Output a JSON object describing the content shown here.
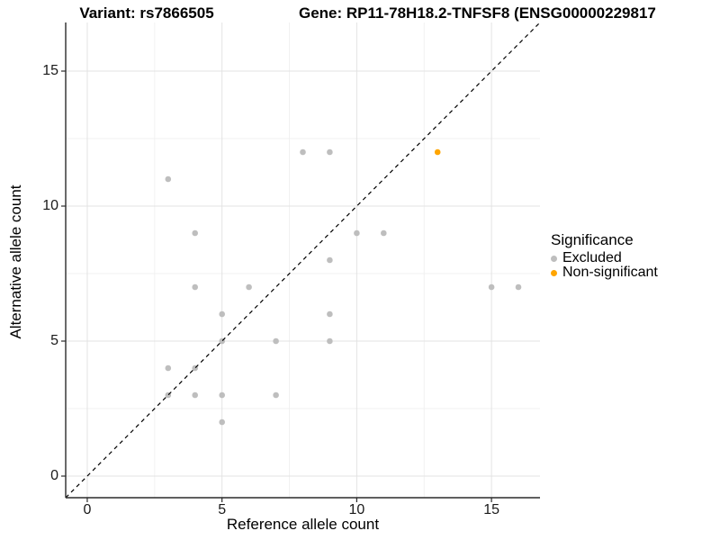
{
  "title": {
    "variant": "Variant: rs7866505",
    "gene": "Gene: RP11-78H18.2-TNFSF8 (ENSG00000229817"
  },
  "chart_data": {
    "type": "scatter",
    "xlabel": "Reference allele count",
    "ylabel": "Alternative allele count",
    "xlim": [
      -0.8,
      16.8
    ],
    "ylim": [
      -0.8,
      16.8
    ],
    "x_ticks": [
      0,
      5,
      10,
      15
    ],
    "y_ticks": [
      0,
      5,
      10,
      15
    ],
    "grid": "major and minor gridlines, light gray on white",
    "reference_line": {
      "kind": "identity y=x",
      "style": "dashed",
      "color": "#000000"
    },
    "legend": {
      "title": "Significance",
      "position": "right",
      "entries": [
        {
          "label": "Excluded",
          "color": "#BEBEBE"
        },
        {
          "label": "Non-significant",
          "color": "#FFA500"
        }
      ]
    },
    "series": [
      {
        "name": "Excluded",
        "color": "#BEBEBE",
        "points": [
          [
            3,
            3
          ],
          [
            3,
            4
          ],
          [
            3,
            11
          ],
          [
            4,
            3
          ],
          [
            4,
            4
          ],
          [
            4,
            7
          ],
          [
            4,
            9
          ],
          [
            5,
            2
          ],
          [
            5,
            3
          ],
          [
            5,
            5
          ],
          [
            5,
            6
          ],
          [
            6,
            7
          ],
          [
            7,
            3
          ],
          [
            7,
            5
          ],
          [
            8,
            12
          ],
          [
            9,
            5
          ],
          [
            9,
            6
          ],
          [
            9,
            8
          ],
          [
            9,
            12
          ],
          [
            10,
            9
          ],
          [
            11,
            9
          ],
          [
            15,
            7
          ],
          [
            16,
            7
          ]
        ]
      },
      {
        "name": "Non-significant",
        "color": "#FFA500",
        "points": [
          [
            13,
            12
          ]
        ]
      }
    ],
    "colors": {
      "major_grid": "#e3e3e3",
      "minor_grid": "#f0f0f0",
      "axis_line": "#2b2b2b",
      "point_excluded": "#BEBEBE",
      "point_nonsignificant": "#FFA500"
    }
  }
}
